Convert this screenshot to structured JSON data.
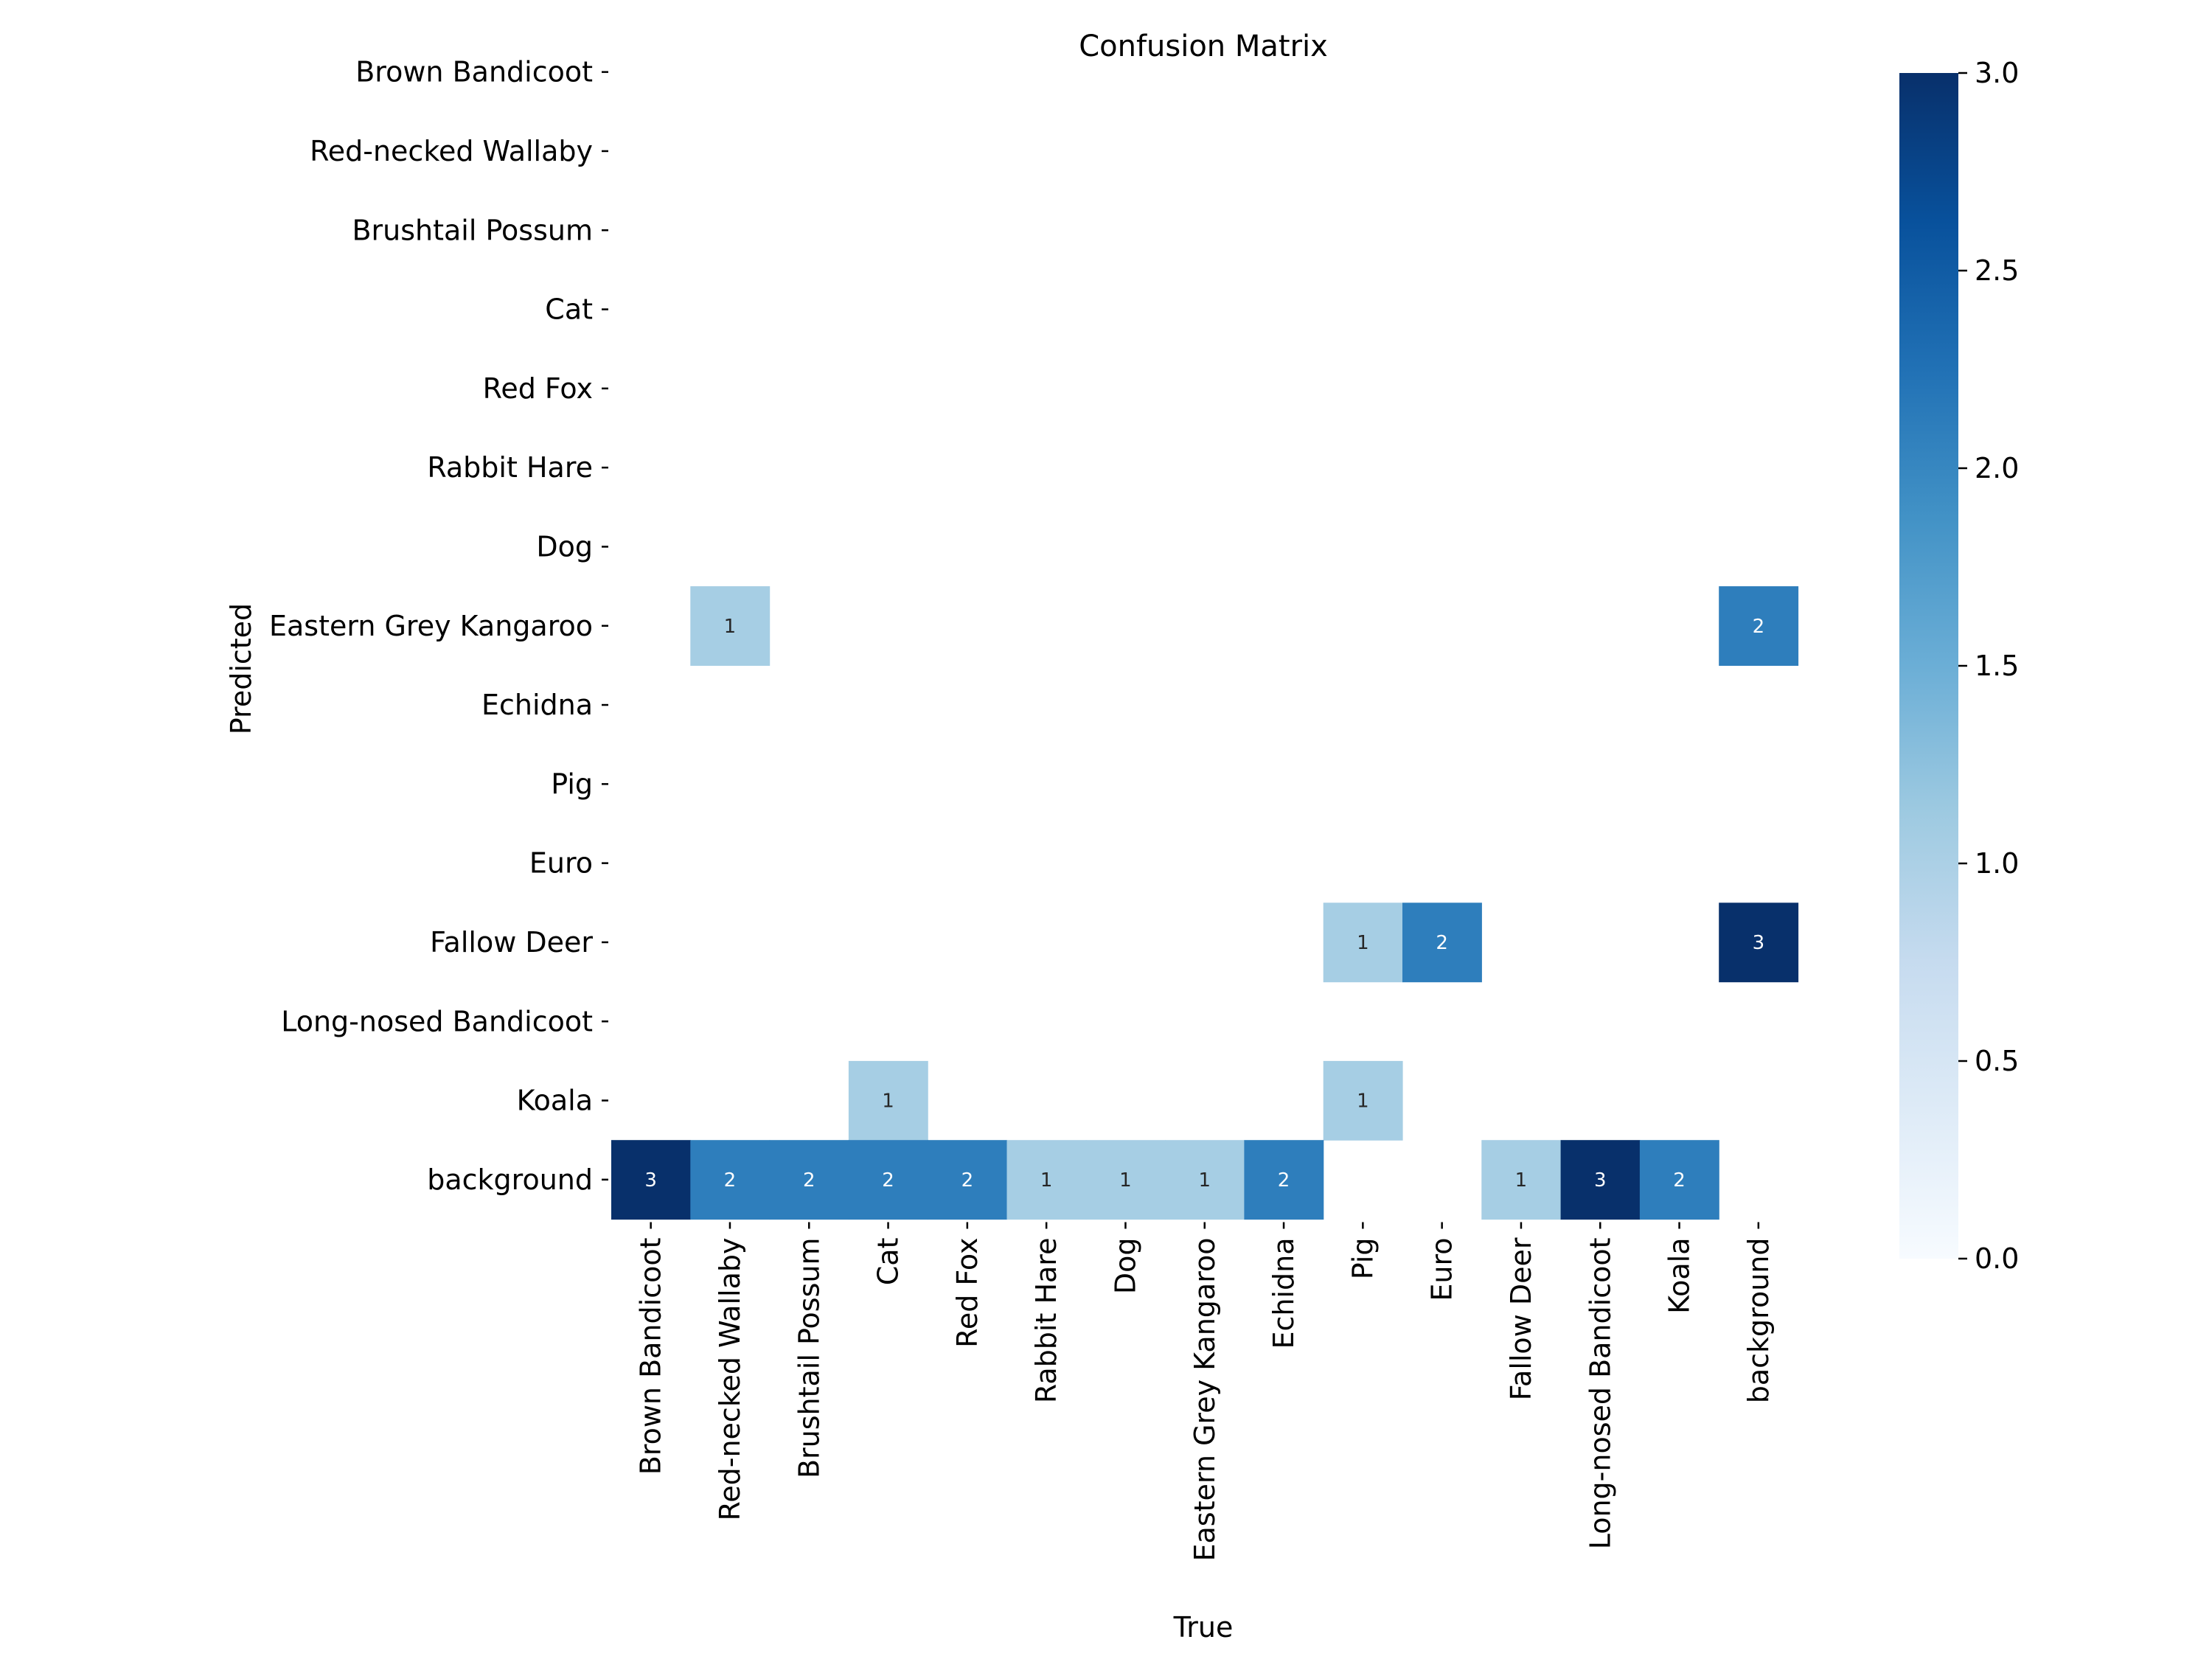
{
  "chart_data": {
    "type": "heatmap",
    "title": "Confusion Matrix",
    "xlabel": "True",
    "ylabel": "Predicted",
    "x_categories": [
      "Brown Bandicoot",
      "Red-necked Wallaby",
      "Brushtail Possum",
      "Cat",
      "Red Fox",
      "Rabbit Hare",
      "Dog",
      "Eastern Grey Kangaroo",
      "Echidna",
      "Pig",
      "Euro",
      "Fallow Deer",
      "Long-nosed Bandicoot",
      "Koala",
      "background"
    ],
    "y_categories": [
      "Brown Bandicoot",
      "Red-necked Wallaby",
      "Brushtail Possum",
      "Cat",
      "Red Fox",
      "Rabbit Hare",
      "Dog",
      "Eastern Grey Kangaroo",
      "Echidna",
      "Pig",
      "Euro",
      "Fallow Deer",
      "Long-nosed Bandicoot",
      "Koala",
      "background"
    ],
    "values": [
      [
        0,
        0,
        0,
        0,
        0,
        0,
        0,
        0,
        0,
        0,
        0,
        0,
        0,
        0,
        0
      ],
      [
        0,
        0,
        0,
        0,
        0,
        0,
        0,
        0,
        0,
        0,
        0,
        0,
        0,
        0,
        0
      ],
      [
        0,
        0,
        0,
        0,
        0,
        0,
        0,
        0,
        0,
        0,
        0,
        0,
        0,
        0,
        0
      ],
      [
        0,
        0,
        0,
        0,
        0,
        0,
        0,
        0,
        0,
        0,
        0,
        0,
        0,
        0,
        0
      ],
      [
        0,
        0,
        0,
        0,
        0,
        0,
        0,
        0,
        0,
        0,
        0,
        0,
        0,
        0,
        0
      ],
      [
        0,
        0,
        0,
        0,
        0,
        0,
        0,
        0,
        0,
        0,
        0,
        0,
        0,
        0,
        0
      ],
      [
        0,
        0,
        0,
        0,
        0,
        0,
        0,
        0,
        0,
        0,
        0,
        0,
        0,
        0,
        0
      ],
      [
        0,
        1,
        0,
        0,
        0,
        0,
        0,
        0,
        0,
        0,
        0,
        0,
        0,
        0,
        2
      ],
      [
        0,
        0,
        0,
        0,
        0,
        0,
        0,
        0,
        0,
        0,
        0,
        0,
        0,
        0,
        0
      ],
      [
        0,
        0,
        0,
        0,
        0,
        0,
        0,
        0,
        0,
        0,
        0,
        0,
        0,
        0,
        0
      ],
      [
        0,
        0,
        0,
        0,
        0,
        0,
        0,
        0,
        0,
        0,
        0,
        0,
        0,
        0,
        0
      ],
      [
        0,
        0,
        0,
        0,
        0,
        0,
        0,
        0,
        0,
        1,
        2,
        0,
        0,
        0,
        3
      ],
      [
        0,
        0,
        0,
        0,
        0,
        0,
        0,
        0,
        0,
        0,
        0,
        0,
        0,
        0,
        0
      ],
      [
        0,
        0,
        0,
        1,
        0,
        0,
        0,
        0,
        0,
        1,
        0,
        0,
        0,
        0,
        0
      ],
      [
        3,
        2,
        2,
        2,
        2,
        1,
        1,
        1,
        2,
        0,
        0,
        1,
        3,
        2,
        0
      ]
    ],
    "zero_cells_hidden": true,
    "colormap": "Blues",
    "colorbar": {
      "range": [
        0,
        3
      ],
      "ticks": [
        0,
        0.5,
        1,
        1.5,
        2,
        2.5,
        3
      ],
      "tick_labels": [
        "0.0",
        "0.5",
        "1.0",
        "1.5",
        "2.0",
        "2.5",
        "3.0"
      ]
    },
    "colors": {
      "value_1": "#a6cee4",
      "value_2": "#2e7ebc",
      "value_3": "#08306b",
      "colorbar_stops": [
        "#f7fbff",
        "#deebf7",
        "#c6dbef",
        "#9ecae1",
        "#6baed6",
        "#4292c6",
        "#2171b5",
        "#08519c",
        "#08306b"
      ]
    }
  }
}
